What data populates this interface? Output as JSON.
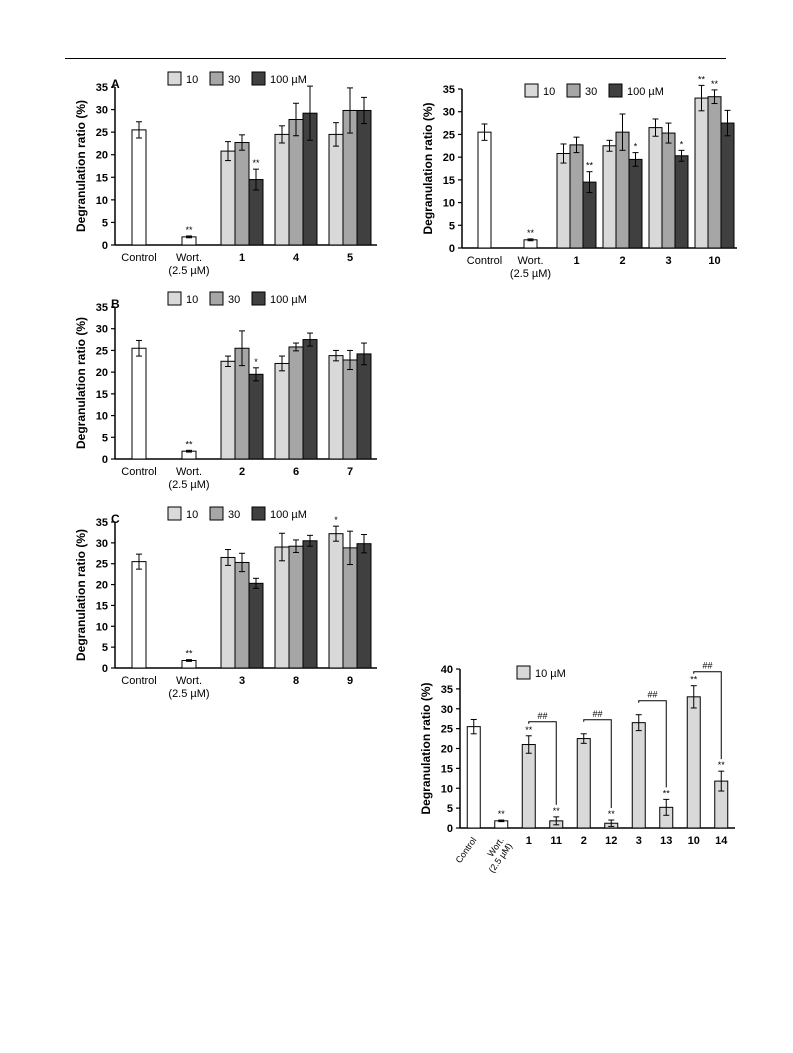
{
  "chart_data": [
    {
      "type": "bar",
      "panel_label": "A",
      "ylabel": "Degranulation ratio (%)",
      "ylim": [
        0,
        35
      ],
      "yticks": [
        0,
        5,
        10,
        15,
        20,
        25,
        30,
        35
      ],
      "legend": {
        "entries": [
          "10",
          "30",
          "100 µM"
        ],
        "placement": "top"
      },
      "groups": [
        {
          "label": "Control",
          "bars": [
            {
              "value": 25.5,
              "err": 1.8,
              "color": "#ffffff"
            }
          ]
        },
        {
          "label": "Wort.\n(2.5 µM)",
          "bars": [
            {
              "value": 1.8,
              "err": 0.2,
              "color": "#ffffff",
              "sig": "**"
            }
          ]
        },
        {
          "label": "1",
          "bars": [
            {
              "value": 20.8,
              "err": 2.1,
              "color": "#d9d9d9"
            },
            {
              "value": 22.7,
              "err": 1.7,
              "color": "#a6a6a6"
            },
            {
              "value": 14.5,
              "err": 2.3,
              "color": "#404040",
              "sig": "**"
            }
          ]
        },
        {
          "label": "4",
          "bars": [
            {
              "value": 24.5,
              "err": 1.9,
              "color": "#d9d9d9"
            },
            {
              "value": 27.8,
              "err": 3.6,
              "color": "#a6a6a6"
            },
            {
              "value": 29.2,
              "err": 6.0,
              "color": "#404040"
            }
          ]
        },
        {
          "label": "5",
          "bars": [
            {
              "value": 24.5,
              "err": 2.6,
              "color": "#d9d9d9"
            },
            {
              "value": 29.8,
              "err": 5.0,
              "color": "#a6a6a6"
            },
            {
              "value": 29.8,
              "err": 2.9,
              "color": "#404040"
            }
          ]
        }
      ]
    },
    {
      "type": "bar",
      "panel_label": "",
      "ylabel": "Degranulation ratio (%)",
      "ylim": [
        0,
        35
      ],
      "yticks": [
        0,
        5,
        10,
        15,
        20,
        25,
        30,
        35
      ],
      "legend": {
        "entries": [
          "10",
          "30",
          "100 µM"
        ],
        "placement": "top"
      },
      "groups": [
        {
          "label": "Control",
          "bars": [
            {
              "value": 25.5,
              "err": 1.8,
              "color": "#ffffff"
            }
          ]
        },
        {
          "label": "Wort.\n(2.5 µM)",
          "bars": [
            {
              "value": 1.8,
              "err": 0.2,
              "color": "#ffffff",
              "sig": "**"
            }
          ]
        },
        {
          "label": "1",
          "bars": [
            {
              "value": 20.8,
              "err": 2.1,
              "color": "#d9d9d9"
            },
            {
              "value": 22.7,
              "err": 1.7,
              "color": "#a6a6a6"
            },
            {
              "value": 14.5,
              "err": 2.3,
              "color": "#404040",
              "sig": "**"
            }
          ]
        },
        {
          "label": "2",
          "bars": [
            {
              "value": 22.5,
              "err": 1.2,
              "color": "#d9d9d9"
            },
            {
              "value": 25.5,
              "err": 4.0,
              "color": "#a6a6a6"
            },
            {
              "value": 19.5,
              "err": 1.5,
              "color": "#404040",
              "sig": "*"
            }
          ]
        },
        {
          "label": "3",
          "bars": [
            {
              "value": 26.5,
              "err": 1.9,
              "color": "#d9d9d9"
            },
            {
              "value": 25.3,
              "err": 2.2,
              "color": "#a6a6a6"
            },
            {
              "value": 20.3,
              "err": 1.2,
              "color": "#404040",
              "sig": "*"
            }
          ]
        },
        {
          "label": "10",
          "bars": [
            {
              "value": 33.0,
              "err": 2.8,
              "color": "#d9d9d9",
              "sig": "**"
            },
            {
              "value": 33.3,
              "err": 1.5,
              "color": "#a6a6a6",
              "sig": "**"
            },
            {
              "value": 27.5,
              "err": 2.8,
              "color": "#404040"
            }
          ]
        }
      ]
    },
    {
      "type": "bar",
      "panel_label": "B",
      "ylabel": "Degranulation ratio (%)",
      "ylim": [
        0,
        35
      ],
      "yticks": [
        0,
        5,
        10,
        15,
        20,
        25,
        30,
        35
      ],
      "legend": {
        "entries": [
          "10",
          "30",
          "100 µM"
        ],
        "placement": "top"
      },
      "groups": [
        {
          "label": "Control",
          "bars": [
            {
              "value": 25.5,
              "err": 1.8,
              "color": "#ffffff"
            }
          ]
        },
        {
          "label": "Wort.\n(2.5 µM)",
          "bars": [
            {
              "value": 1.8,
              "err": 0.2,
              "color": "#ffffff",
              "sig": "**"
            }
          ]
        },
        {
          "label": "2",
          "bars": [
            {
              "value": 22.5,
              "err": 1.2,
              "color": "#d9d9d9"
            },
            {
              "value": 25.5,
              "err": 4.0,
              "color": "#a6a6a6"
            },
            {
              "value": 19.5,
              "err": 1.5,
              "color": "#404040",
              "sig": "*"
            }
          ]
        },
        {
          "label": "6",
          "bars": [
            {
              "value": 22.0,
              "err": 1.7,
              "color": "#d9d9d9"
            },
            {
              "value": 25.8,
              "err": 0.9,
              "color": "#a6a6a6"
            },
            {
              "value": 27.5,
              "err": 1.5,
              "color": "#404040"
            }
          ]
        },
        {
          "label": "7",
          "bars": [
            {
              "value": 23.8,
              "err": 1.2,
              "color": "#d9d9d9"
            },
            {
              "value": 22.8,
              "err": 2.2,
              "color": "#a6a6a6"
            },
            {
              "value": 24.2,
              "err": 2.5,
              "color": "#404040"
            }
          ]
        }
      ]
    },
    {
      "type": "bar",
      "panel_label": "C",
      "ylabel": "Degranulation ratio (%)",
      "ylim": [
        0,
        35
      ],
      "yticks": [
        0,
        5,
        10,
        15,
        20,
        25,
        30,
        35
      ],
      "legend": {
        "entries": [
          "10",
          "30",
          "100 µM"
        ],
        "placement": "top"
      },
      "groups": [
        {
          "label": "Control",
          "bars": [
            {
              "value": 25.5,
              "err": 1.8,
              "color": "#ffffff"
            }
          ]
        },
        {
          "label": "Wort.\n(2.5 µM)",
          "bars": [
            {
              "value": 1.8,
              "err": 0.2,
              "color": "#ffffff",
              "sig": "**"
            }
          ]
        },
        {
          "label": "3",
          "bars": [
            {
              "value": 26.5,
              "err": 1.9,
              "color": "#d9d9d9"
            },
            {
              "value": 25.3,
              "err": 2.2,
              "color": "#a6a6a6"
            },
            {
              "value": 20.3,
              "err": 1.2,
              "color": "#404040"
            }
          ]
        },
        {
          "label": "8",
          "bars": [
            {
              "value": 29.0,
              "err": 3.3,
              "color": "#d9d9d9"
            },
            {
              "value": 29.2,
              "err": 1.5,
              "color": "#a6a6a6"
            },
            {
              "value": 30.5,
              "err": 1.3,
              "color": "#404040"
            }
          ]
        },
        {
          "label": "9",
          "bars": [
            {
              "value": 32.2,
              "err": 1.8,
              "color": "#d9d9d9",
              "sig": "*"
            },
            {
              "value": 28.8,
              "err": 4.0,
              "color": "#a6a6a6"
            },
            {
              "value": 29.8,
              "err": 2.2,
              "color": "#404040"
            }
          ]
        }
      ]
    },
    {
      "type": "bar",
      "panel_label": "",
      "ylabel": "Degranulation ratio (%)",
      "ylim": [
        0,
        40
      ],
      "yticks": [
        0,
        5,
        10,
        15,
        20,
        25,
        30,
        35,
        40
      ],
      "legend": {
        "entries": [
          "10 µM"
        ],
        "placement": "top"
      },
      "bracket_label": "##",
      "bars": [
        {
          "label": "Control",
          "value": 25.5,
          "err": 1.8,
          "color": "#ffffff"
        },
        {
          "label": "Wort.\n(2.5 µM)",
          "value": 1.8,
          "err": 0.2,
          "color": "#ffffff",
          "sig": "**"
        },
        {
          "label": "1",
          "value": 21.0,
          "err": 2.2,
          "color": "#d9d9d9",
          "sig": "**"
        },
        {
          "label": "11",
          "value": 1.8,
          "err": 1.0,
          "color": "#d9d9d9",
          "sig": "**"
        },
        {
          "label": "2",
          "value": 22.5,
          "err": 1.2,
          "color": "#d9d9d9"
        },
        {
          "label": "12",
          "value": 1.2,
          "err": 0.8,
          "color": "#d9d9d9",
          "sig": "**"
        },
        {
          "label": "3",
          "value": 26.5,
          "err": 2.0,
          "color": "#d9d9d9"
        },
        {
          "label": "13",
          "value": 5.2,
          "err": 2.0,
          "color": "#d9d9d9",
          "sig": "**"
        },
        {
          "label": "10",
          "value": 33.0,
          "err": 2.8,
          "color": "#d9d9d9",
          "sig": "**"
        },
        {
          "label": "14",
          "value": 11.8,
          "err": 2.5,
          "color": "#d9d9d9",
          "sig": "**"
        }
      ],
      "brackets": [
        [
          2,
          3
        ],
        [
          4,
          5
        ],
        [
          6,
          7
        ],
        [
          8,
          9
        ]
      ]
    }
  ]
}
